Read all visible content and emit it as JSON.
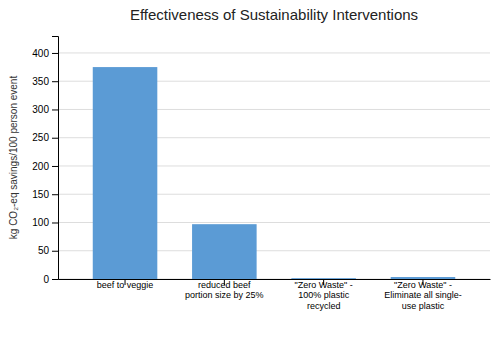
{
  "chart_data": {
    "type": "bar",
    "title": "Effectiveness of Sustainability Interventions",
    "categories": [
      "beef to veggie",
      "reduced beef\nportion size by 25%",
      "\"Zero Waste\" -\n100% plastic\nrecycled",
      "\"Zero Waste\" -\nEliminate all single-\nuse plastic"
    ],
    "values": [
      375,
      97,
      1.5,
      3.5
    ],
    "color": "#5B9BD5",
    "ylabel": "kg CO₂-eq savings/100 person event",
    "ylim": [
      0,
      430
    ],
    "yticks": [
      0,
      50,
      100,
      150,
      200,
      250,
      300,
      350,
      400
    ],
    "grid": true
  }
}
